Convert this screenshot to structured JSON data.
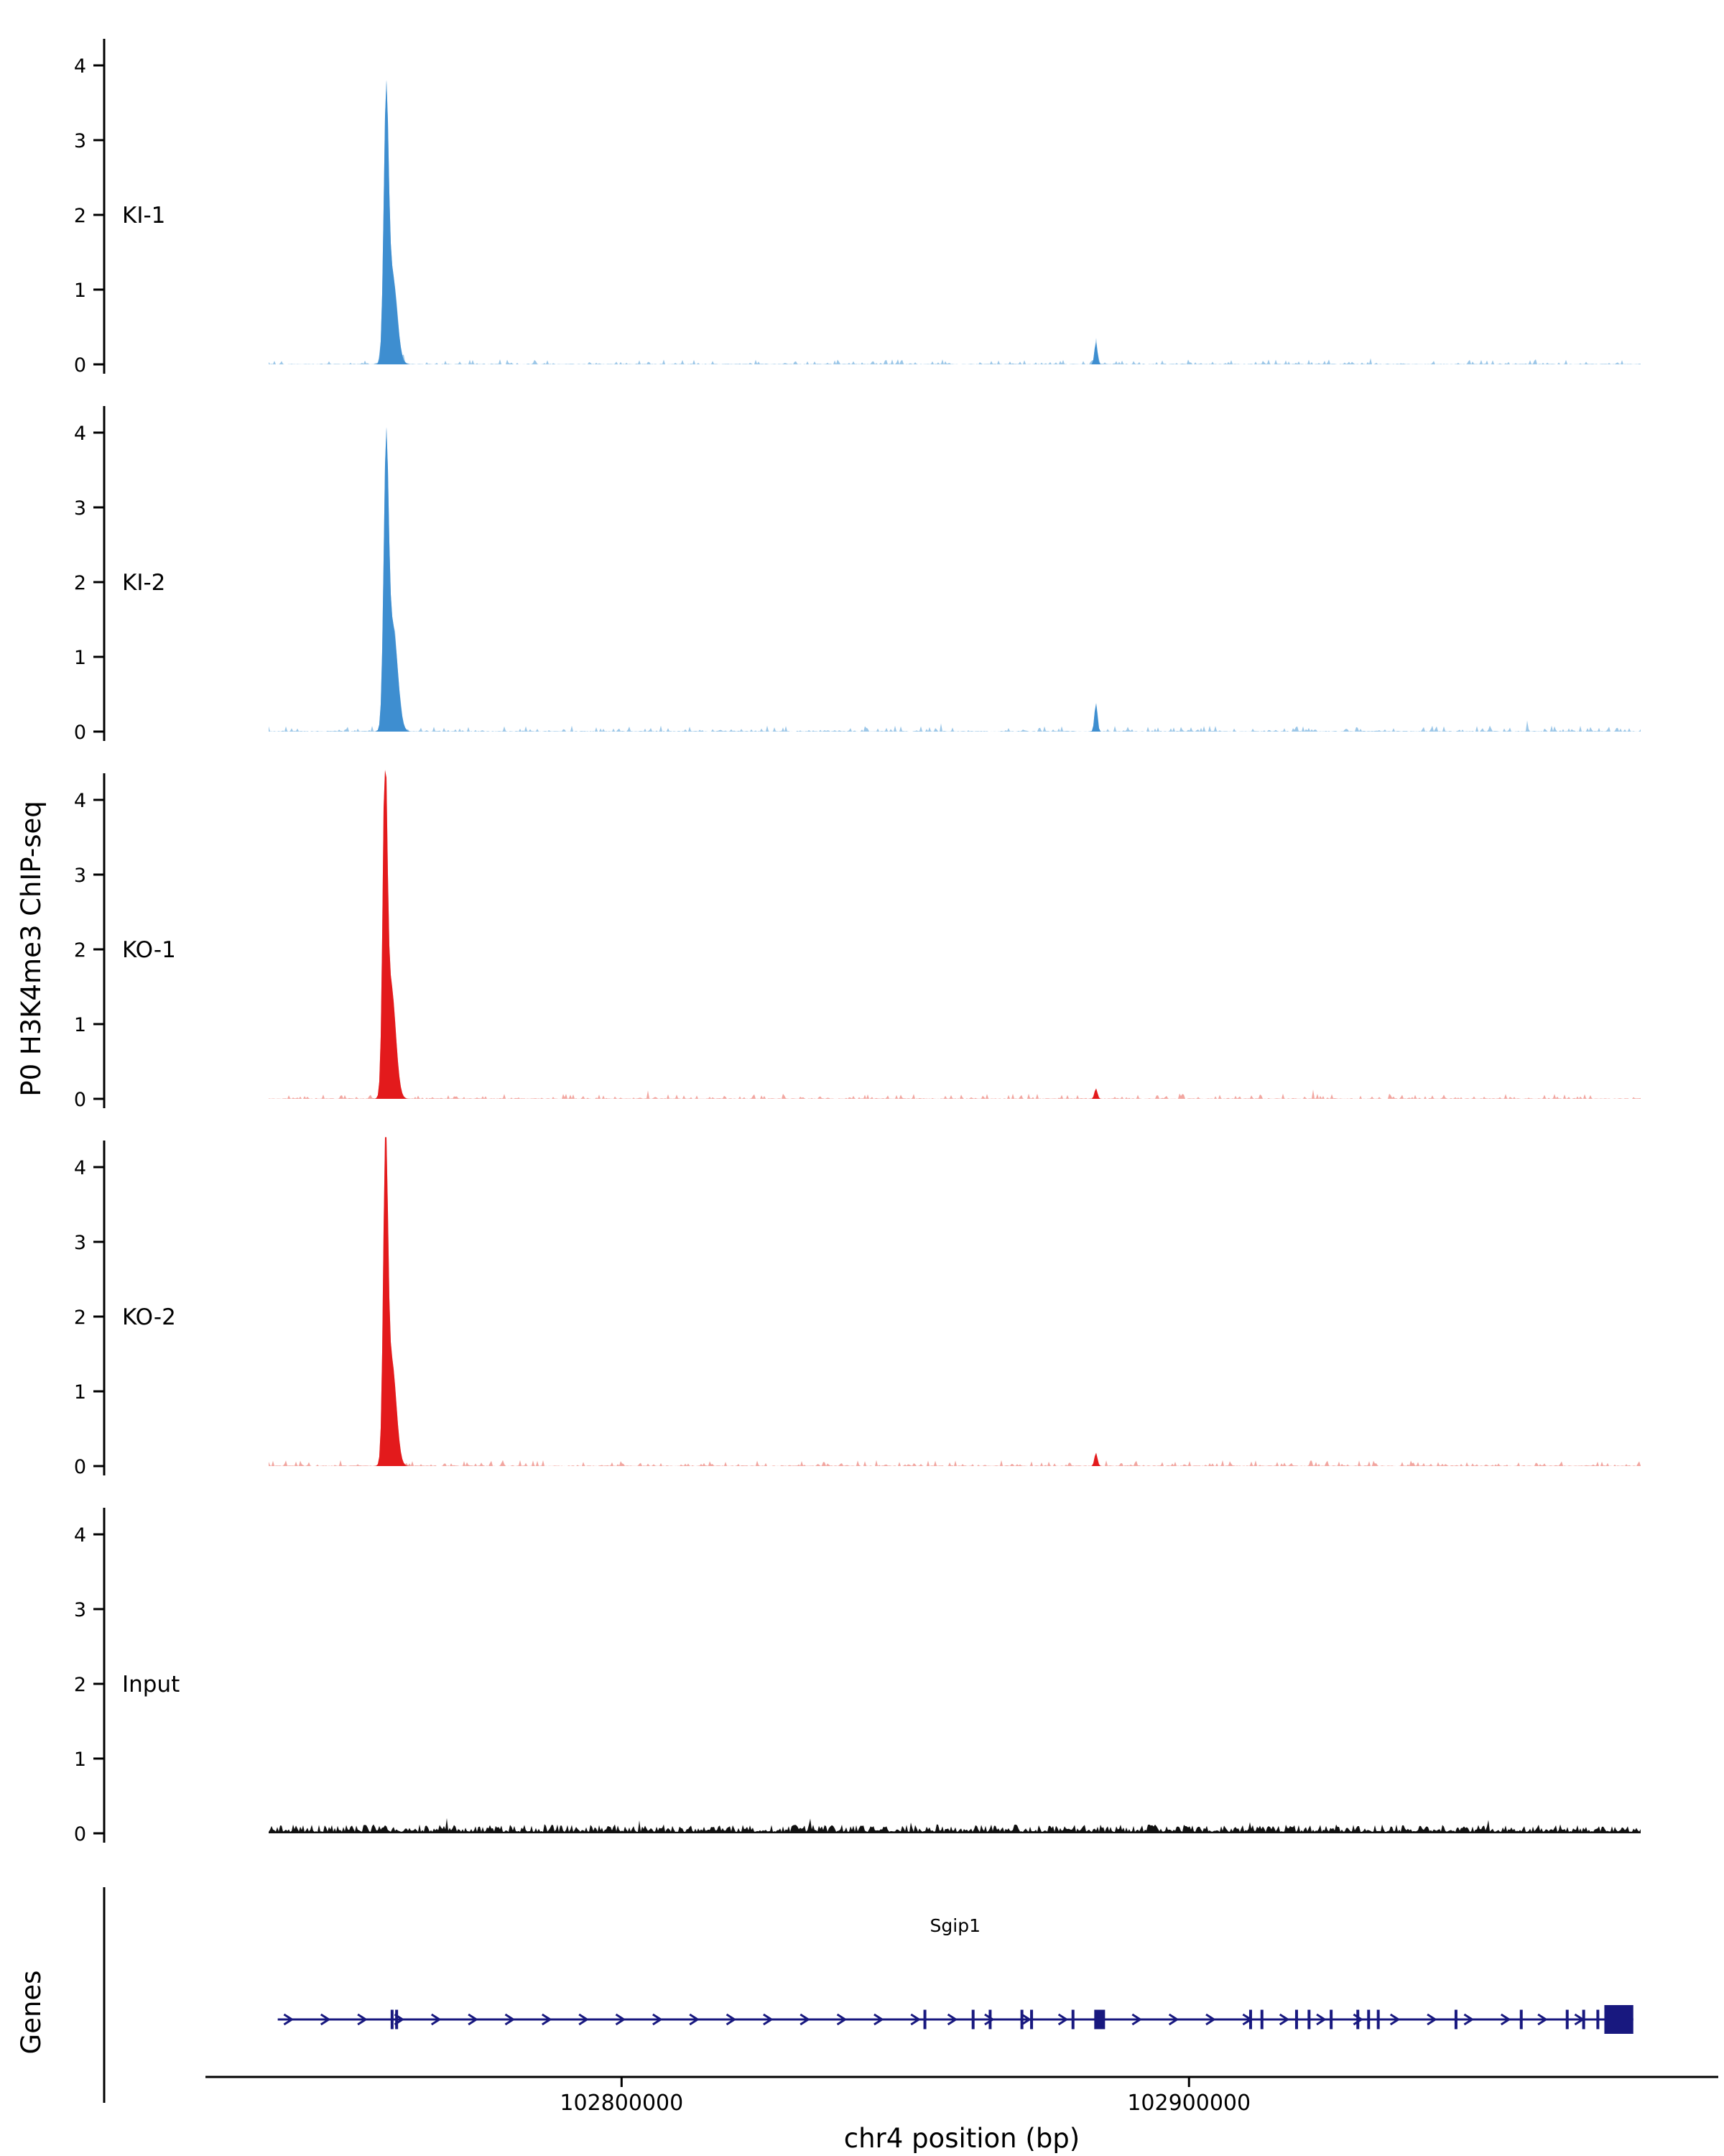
{
  "figure": {
    "ylabel": "P0 H3K4me3 ChIP-seq",
    "xlabel": "chr4 position (bp)",
    "genes_label": "Genes",
    "background": "#ffffff"
  },
  "chart_data": {
    "type": "area",
    "description": "Genome-browser style ChIP-seq coverage tracks over the Sgip1 locus",
    "title": "",
    "xlabel": "chr4 position (bp)",
    "ylabel": "P0 H3K4me3 ChIP-seq",
    "x_range_bp": [
      102737800,
      102979600
    ],
    "x_ticks_bp": [
      102800000,
      102900000
    ],
    "x_tick_labels": [
      "102800000",
      "102900000"
    ],
    "y_ticks": [
      0,
      1,
      2,
      3,
      4
    ],
    "y_max": 4.4,
    "grid": false,
    "legend": "none",
    "tracks": [
      {
        "label": "KI-1",
        "color": "#3e8ed0",
        "noise_color": "#9cc7e8",
        "seed": 101,
        "noise_amp": 0.07,
        "dense": false,
        "peaks": [
          {
            "center_bp": 102758500,
            "height": 3.3,
            "sigma_bp": 420
          },
          {
            "center_bp": 102759600,
            "height": 1.2,
            "sigma_bp": 820
          },
          {
            "center_bp": 102883600,
            "height": 0.3,
            "sigma_bp": 260
          }
        ]
      },
      {
        "label": "KI-2",
        "color": "#3e8ed0",
        "noise_color": "#9cc7e8",
        "seed": 202,
        "noise_amp": 0.08,
        "dense": false,
        "peaks": [
          {
            "center_bp": 102758500,
            "height": 3.55,
            "sigma_bp": 430
          },
          {
            "center_bp": 102759700,
            "height": 1.4,
            "sigma_bp": 840
          },
          {
            "center_bp": 102883600,
            "height": 0.38,
            "sigma_bp": 260
          }
        ]
      },
      {
        "label": "KO-1",
        "color": "#e31a1c",
        "noise_color": "#f2a6a0",
        "seed": 303,
        "noise_amp": 0.07,
        "dense": false,
        "peaks": [
          {
            "center_bp": 102758300,
            "height": 4.25,
            "sigma_bp": 400
          },
          {
            "center_bp": 102759400,
            "height": 1.5,
            "sigma_bp": 800
          },
          {
            "center_bp": 102883600,
            "height": 0.14,
            "sigma_bp": 260
          }
        ]
      },
      {
        "label": "KO-2",
        "color": "#e31a1c",
        "noise_color": "#f2a6a0",
        "seed": 404,
        "noise_amp": 0.08,
        "dense": false,
        "peaks": [
          {
            "center_bp": 102758400,
            "height": 4.2,
            "sigma_bp": 400
          },
          {
            "center_bp": 102759500,
            "height": 1.4,
            "sigma_bp": 800
          },
          {
            "center_bp": 102883600,
            "height": 0.18,
            "sigma_bp": 260
          }
        ]
      },
      {
        "label": "Input",
        "color": "#111111",
        "noise_color": "#111111",
        "seed": 505,
        "noise_amp": 0.1,
        "dense": true,
        "peaks": []
      }
    ],
    "genes": {
      "axis_label": "Genes",
      "items": [
        {
          "name": "Sgip1",
          "strand": "+",
          "start_bp": 102739400,
          "end_bp": 102978300,
          "color": "#18187f",
          "label_bp": 102858800,
          "exons_bp": [
            [
              102759300,
              102759800
            ],
            [
              102760100,
              102760600
            ],
            [
              102853200,
              102853700
            ],
            [
              102861700,
              102862200
            ],
            [
              102864700,
              102865200
            ],
            [
              102870300,
              102870800
            ],
            [
              102872000,
              102872500
            ],
            [
              102879300,
              102879800
            ],
            [
              102883300,
              102885200
            ],
            [
              102910600,
              102911100
            ],
            [
              102912600,
              102913100
            ],
            [
              102918700,
              102919200
            ],
            [
              102920900,
              102921400
            ],
            [
              102924800,
              102925300
            ],
            [
              102929500,
              102930000
            ],
            [
              102931400,
              102931900
            ],
            [
              102933100,
              102933600
            ],
            [
              102946800,
              102947300
            ],
            [
              102958300,
              102958800
            ],
            [
              102966400,
              102966900
            ],
            [
              102969300,
              102969800
            ],
            [
              102971800,
              102972300
            ],
            [
              102973200,
              102978300
            ]
          ]
        }
      ]
    }
  }
}
